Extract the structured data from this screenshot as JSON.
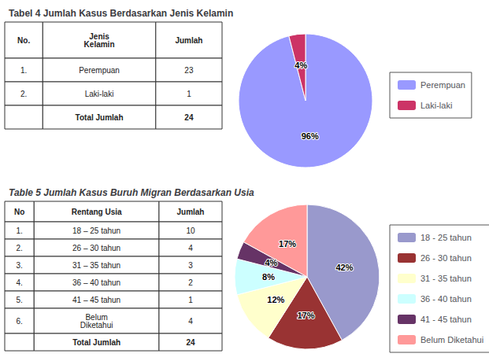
{
  "chart_data": [
    {
      "type": "table",
      "title": "Tabel 4 Jumlah Kasus Berdasarkan Jenis Kelamin",
      "headers": [
        "No.",
        "Jenis\nKelamin",
        "Jumlah"
      ],
      "rows": [
        [
          "1.",
          "Perempuan",
          "23"
        ],
        [
          "2.",
          "Laki-laki",
          "1"
        ],
        [
          "",
          "Total Jumlah",
          "24"
        ]
      ]
    },
    {
      "type": "pie",
      "categories": [
        "Perempuan",
        "Laki-laki"
      ],
      "values": [
        96,
        4
      ],
      "value_labels": [
        "96%",
        "4%"
      ],
      "colors": [
        "#9999FF",
        "#CC3366"
      ],
      "data_labels": true,
      "legend": "right"
    },
    {
      "type": "table",
      "title": "Table 5 Jumlah Kasus Buruh Migran Berdasarkan Usia",
      "headers": [
        "No",
        "Rentang Usia",
        "Jumlah"
      ],
      "rows": [
        [
          "1.",
          "18 – 25 tahun",
          "10"
        ],
        [
          "2.",
          "26 – 30 tahun",
          "4"
        ],
        [
          "3.",
          "31 – 35 tahun",
          "3"
        ],
        [
          "4.",
          "36 – 40 tahun",
          "2"
        ],
        [
          "5.",
          "41 – 45 tahun",
          "1"
        ],
        [
          "6.",
          "Belum\nDiketahui",
          "4"
        ],
        [
          "",
          "Total Jumlah",
          "24"
        ]
      ]
    },
    {
      "type": "pie",
      "categories": [
        "18 - 25 tahun",
        "26 - 30 tahun",
        "31 - 35 tahun",
        "36 - 40 tahun",
        "41 - 45 tahun",
        "Belum Diketahui"
      ],
      "values": [
        42,
        17,
        12,
        8,
        4,
        17
      ],
      "value_labels": [
        "42%",
        "17%",
        "12%",
        "8%",
        "4%",
        "17%"
      ],
      "colors": [
        "#9999CC",
        "#993333",
        "#FFFFCC",
        "#CCFFFF",
        "#663366",
        "#FF9999"
      ],
      "data_labels": true,
      "legend": "right"
    }
  ]
}
